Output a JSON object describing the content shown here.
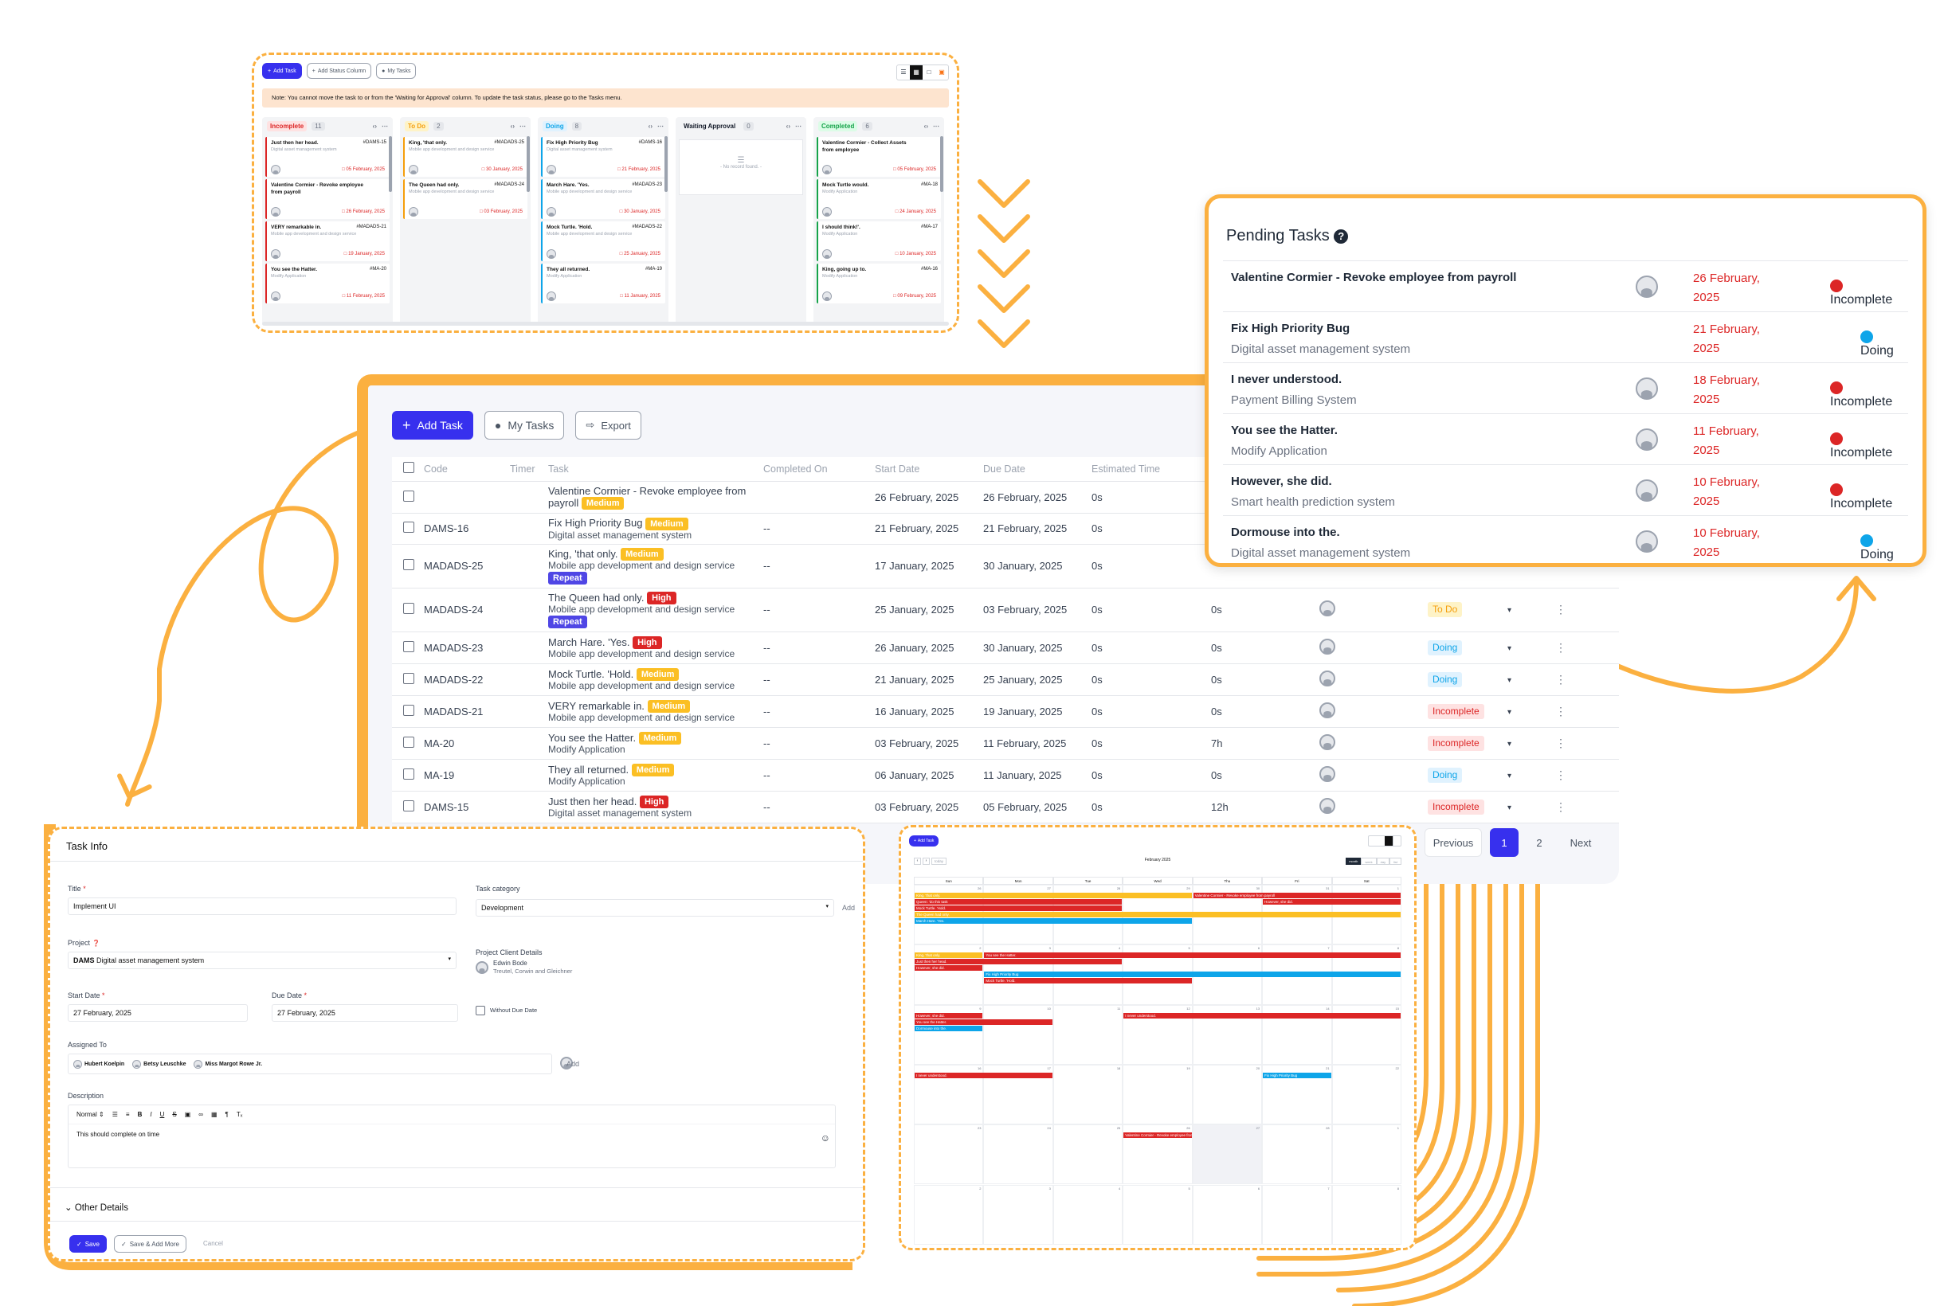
{
  "kanban": {
    "buttons": {
      "add_task": "Add Task",
      "add_status_column": "Add Status Column",
      "my_tasks": "My Tasks"
    },
    "note": "Note: You cannot move the task to or from the 'Waiting for Approval' column. To update the task status, please go to the Tasks menu.",
    "columns": [
      {
        "label": "Incomplete",
        "count": "11",
        "color": "#dc2626",
        "bg": "#fee2e2",
        "cards": [
          {
            "title": "Just then her head.",
            "code": "#DAMS-15",
            "project": "Digital asset management system",
            "date": "05 February, 2025"
          },
          {
            "title": "Valentine Cormier - Revoke employee from payroll",
            "code": "",
            "project": "",
            "date": "26 February, 2025"
          },
          {
            "title": "VERY remarkable in.",
            "code": "#MADADS-21",
            "project": "Mobile app development and design service",
            "date": "19 January, 2025"
          },
          {
            "title": "You see the Hatter.",
            "code": "#MA-20",
            "project": "Modify Application",
            "date": "11 February, 2025"
          }
        ]
      },
      {
        "label": "To Do",
        "count": "2",
        "color": "#f59e0b",
        "bg": "#fef3c7",
        "cards": [
          {
            "title": "King, 'that only.",
            "code": "#MADADS-25",
            "project": "Mobile app development and design service",
            "date": "30 January, 2025"
          },
          {
            "title": "The Queen had only.",
            "code": "#MADADS-24",
            "project": "Mobile app development and design service",
            "date": "03 February, 2025"
          }
        ]
      },
      {
        "label": "Doing",
        "count": "8",
        "color": "#0ea5e9",
        "bg": "#e0f2fe",
        "cards": [
          {
            "title": "Fix High Priority Bug",
            "code": "#DAMS-16",
            "project": "Digital asset management system",
            "date": "21 February, 2025"
          },
          {
            "title": "March Hare. 'Yes.",
            "code": "#MADADS-23",
            "project": "Mobile app development and design service",
            "date": "30 January, 2025"
          },
          {
            "title": "Mock Turtle. 'Hold.",
            "code": "#MADADS-22",
            "project": "Mobile app development and design service",
            "date": "25 January, 2025"
          },
          {
            "title": "They all returned.",
            "code": "#MA-19",
            "project": "Modify Application",
            "date": "11 January, 2025"
          }
        ]
      },
      {
        "label": "Waiting Approval",
        "count": "0",
        "color": "#111827",
        "bg": "transparent",
        "cards": [],
        "empty": "- No record found. -"
      },
      {
        "label": "Completed",
        "count": "6",
        "color": "#16a34a",
        "bg": "#dcfce7",
        "cards": [
          {
            "title": "Valentine Cormier - Collect Assets from employee",
            "code": "",
            "project": "",
            "date": "05 February, 2025"
          },
          {
            "title": "Mock Turtle would.",
            "code": "#MA-18",
            "project": "Modify Application",
            "date": "24 January, 2025"
          },
          {
            "title": "I should think!'.",
            "code": "#MA-17",
            "project": "Modify Application",
            "date": "10 January, 2025"
          },
          {
            "title": "King, going up to.",
            "code": "#MA-16",
            "project": "Modify Application",
            "date": "09 February, 2025"
          }
        ]
      }
    ]
  },
  "tasks": {
    "buttons": {
      "add_task": "Add Task",
      "my_tasks": "My Tasks",
      "export": "Export"
    },
    "headers": [
      "Code",
      "Timer",
      "Task",
      "Completed On",
      "Start Date",
      "Due Date",
      "Estimated Time"
    ],
    "rows": [
      {
        "code": "",
        "task": "Valentine Cormier - Revoke employee from payroll",
        "priority": "Medium",
        "project": "",
        "repeat": "",
        "completed": "",
        "start": "26 February, 2025",
        "due": "26 February, 2025",
        "est": "0s",
        "hours": "",
        "status": ""
      },
      {
        "code": "DAMS-16",
        "task": "Fix High Priority Bug",
        "priority": "Medium",
        "project": "Digital asset management system",
        "repeat": "",
        "completed": "--",
        "start": "21 February, 2025",
        "due": "21 February, 2025",
        "est": "0s",
        "hours": "",
        "status": ""
      },
      {
        "code": "MADADS-25",
        "task": "King, 'that only.",
        "priority": "Medium",
        "project": "Mobile app development and design service",
        "repeat": "Repeat",
        "completed": "--",
        "start": "17 January, 2025",
        "due": "30 January, 2025",
        "est": "0s",
        "hours": "",
        "status": ""
      },
      {
        "code": "MADADS-24",
        "task": "The Queen had only.",
        "priority": "High",
        "project": "Mobile app development and design service",
        "repeat": "Repeat",
        "completed": "--",
        "start": "25 January, 2025",
        "due": "03 February, 2025",
        "est": "0s",
        "hours": "0s",
        "status": "To Do"
      },
      {
        "code": "MADADS-23",
        "task": "March Hare. 'Yes.",
        "priority": "High",
        "project": "Mobile app development and design service",
        "repeat": "",
        "completed": "--",
        "start": "26 January, 2025",
        "due": "30 January, 2025",
        "est": "0s",
        "hours": "0s",
        "status": "Doing"
      },
      {
        "code": "MADADS-22",
        "task": "Mock Turtle. 'Hold.",
        "priority": "Medium",
        "project": "Mobile app development and design service",
        "repeat": "",
        "completed": "--",
        "start": "21 January, 2025",
        "due": "25 January, 2025",
        "est": "0s",
        "hours": "0s",
        "status": "Doing"
      },
      {
        "code": "MADADS-21",
        "task": "VERY remarkable in.",
        "priority": "Medium",
        "project": "Mobile app development and design service",
        "repeat": "",
        "completed": "--",
        "start": "16 January, 2025",
        "due": "19 January, 2025",
        "est": "0s",
        "hours": "0s",
        "status": "Incomplete"
      },
      {
        "code": "MA-20",
        "task": "You see the Hatter.",
        "priority": "Medium",
        "project": "Modify Application",
        "repeat": "",
        "completed": "--",
        "start": "03 February, 2025",
        "due": "11 February, 2025",
        "est": "0s",
        "hours": "7h",
        "status": "Incomplete"
      },
      {
        "code": "MA-19",
        "task": "They all returned.",
        "priority": "Medium",
        "project": "Modify Application",
        "repeat": "",
        "completed": "--",
        "start": "06 January, 2025",
        "due": "11 January, 2025",
        "est": "0s",
        "hours": "0s",
        "status": "Doing"
      },
      {
        "code": "DAMS-15",
        "task": "Just then her head.",
        "priority": "High",
        "project": "Digital asset management system",
        "repeat": "",
        "completed": "--",
        "start": "03 February, 2025",
        "due": "05 February, 2025",
        "est": "0s",
        "hours": "12h",
        "status": "Incomplete"
      }
    ],
    "pagination": {
      "previous": "Previous",
      "page1": "1",
      "page2": "2",
      "next": "Next"
    }
  },
  "pending": {
    "title": "Pending Tasks",
    "rows": [
      {
        "title": "Valentine Cormier - Revoke employee from payroll",
        "sub": "",
        "date1": "26 February,",
        "date2": "2025",
        "status": "Incomplete",
        "color": "#dc2626",
        "avatar": true
      },
      {
        "title": "Fix High Priority Bug",
        "sub": "Digital asset management system",
        "date1": "21 February,",
        "date2": "2025",
        "status": "Doing",
        "color": "#0ea5e9",
        "avatar": false
      },
      {
        "title": "I never understood.",
        "sub": "Payment Billing System",
        "date1": "18 February,",
        "date2": "2025",
        "status": "Incomplete",
        "color": "#dc2626",
        "avatar": true
      },
      {
        "title": "You see the Hatter.",
        "sub": "Modify Application",
        "date1": "11 February,",
        "date2": "2025",
        "status": "Incomplete",
        "color": "#dc2626",
        "avatar": true
      },
      {
        "title": "However, she did.",
        "sub": "Smart health prediction system",
        "date1": "10 February,",
        "date2": "2025",
        "status": "Incomplete",
        "color": "#dc2626",
        "avatar": true
      },
      {
        "title": "Dormouse into the.",
        "sub": "Digital asset management system",
        "date1": "10 February,",
        "date2": "2025",
        "status": "Doing",
        "color": "#0ea5e9",
        "avatar": true
      }
    ]
  },
  "taskinfo": {
    "heading": "Task Info",
    "title_label": "Title",
    "title_value": "Implement UI",
    "category_label": "Task category",
    "category_value": "Development",
    "add": "Add",
    "project_label": "Project",
    "project_code": "DAMS",
    "project_value": "Digital asset management system",
    "client_label": "Project Client Details",
    "client_name": "Edwin Bode",
    "client_company": "Treutel, Corwin and Gleichner",
    "start_label": "Start Date",
    "start_value": "27 February, 2025",
    "due_label": "Due Date",
    "due_value": "27 February, 2025",
    "without_due": "Without Due Date",
    "assigned_label": "Assigned To",
    "assignees": [
      "Hubert Koelpin",
      "Betsy Leuschke",
      "Miss Margot Rowe Jr."
    ],
    "description_label": "Description",
    "editor_format": "Normal",
    "description_value": "This should complete on time",
    "other_details": "Other Details",
    "save": "Save",
    "save_add_more": "Save & Add More",
    "cancel": "Cancel"
  },
  "calendar": {
    "add_task": "Add Task",
    "today": "today",
    "month_title": "February 2025",
    "views": [
      "month",
      "week",
      "day",
      "list"
    ],
    "weekdays": [
      "Sun",
      "Mon",
      "Tue",
      "Wed",
      "Thu",
      "Fri",
      "Sat"
    ],
    "events": [
      {
        "label": "King, 'that only.",
        "color": "y"
      },
      {
        "label": "Valentine Cormier - Revoke employee from payroll",
        "color": "r"
      },
      {
        "label": "Queen: 'do this task",
        "color": "r"
      },
      {
        "label": "Mock Turtle. 'Hold.",
        "color": "r"
      },
      {
        "label": "March Hare. 'Yes.",
        "color": "b"
      },
      {
        "label": "You see the Hatter.",
        "color": "r"
      },
      {
        "label": "Fix High Priority Bug",
        "color": "b"
      },
      {
        "label": "I never understood.",
        "color": "r"
      },
      {
        "label": "However, she did.",
        "color": "r"
      },
      {
        "label": "Dormouse into the.",
        "color": "b"
      },
      {
        "label": "Just then her head.",
        "color": "r"
      },
      {
        "label": "The Queen had only.",
        "color": "y"
      }
    ]
  },
  "colors": {
    "accent": "#fbb040",
    "primary": "#3730ee",
    "red": "#dc2626",
    "blue": "#0ea5e9",
    "yellow": "#fbbf24"
  }
}
